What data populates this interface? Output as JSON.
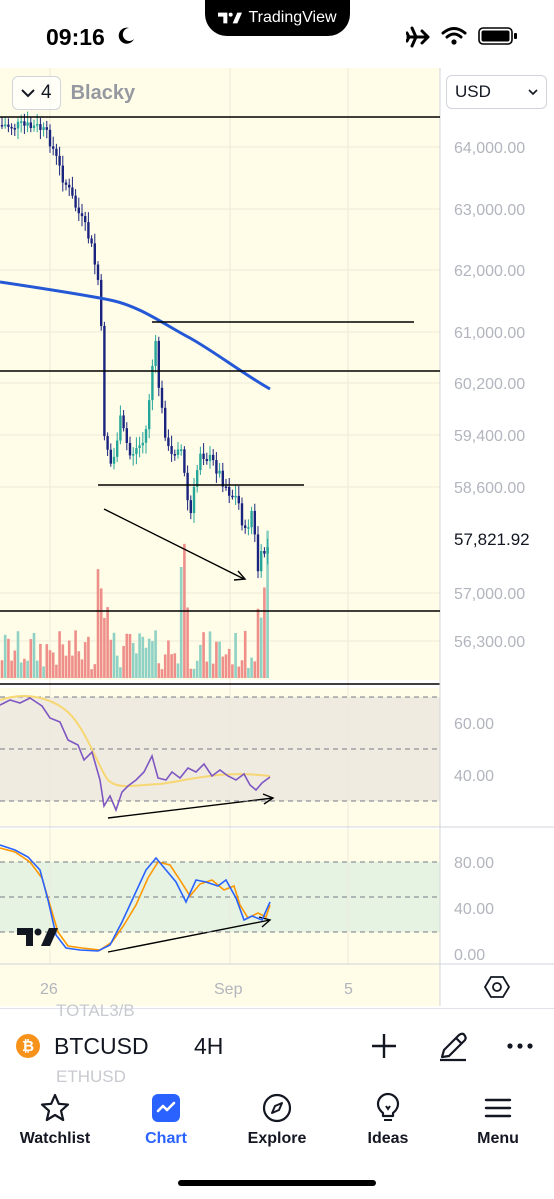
{
  "status_bar": {
    "time": "09:16"
  },
  "app_banner": {
    "name": "TradingView"
  },
  "chart": {
    "legend": {
      "indicator_count": "4",
      "indicator_name": "Blacky"
    },
    "currency": "USD",
    "price_labels": [
      "64,000.00",
      "63,000.00",
      "62,000.00",
      "61,000.00",
      "60,200.00",
      "59,400.00",
      "58,600.00",
      "57,000.00",
      "56,300.00"
    ],
    "last_price": "57,821.92",
    "rsi_labels": [
      "60.00",
      "40.00"
    ],
    "stoch_labels": [
      "80.00",
      "40.00",
      "0.00"
    ],
    "time_labels": [
      "26",
      "Sep",
      "5"
    ],
    "colors": {
      "up": "#26a69a",
      "down": "#1a237e",
      "ma": "#2458d6",
      "vol_up": "#8fd1c4",
      "vol_down": "#ef8f8a",
      "rsi": "#7e57c2",
      "rsi_ma": "#f7d774",
      "stoch_k": "#2962ff",
      "stoch_d": "#ff9800"
    }
  },
  "symbol_bar": {
    "ghost_above": "TOTAL3/B",
    "symbol": "BTCUSD",
    "interval": "4H",
    "ghost_below": "ETHUSD"
  },
  "tab_bar": {
    "tabs": [
      {
        "label": "Watchlist",
        "icon": "star-icon"
      },
      {
        "label": "Chart",
        "icon": "chart-icon",
        "active": true
      },
      {
        "label": "Explore",
        "icon": "compass-icon"
      },
      {
        "label": "Ideas",
        "icon": "lightbulb-icon"
      },
      {
        "label": "Menu",
        "icon": "menu-icon"
      }
    ]
  }
}
